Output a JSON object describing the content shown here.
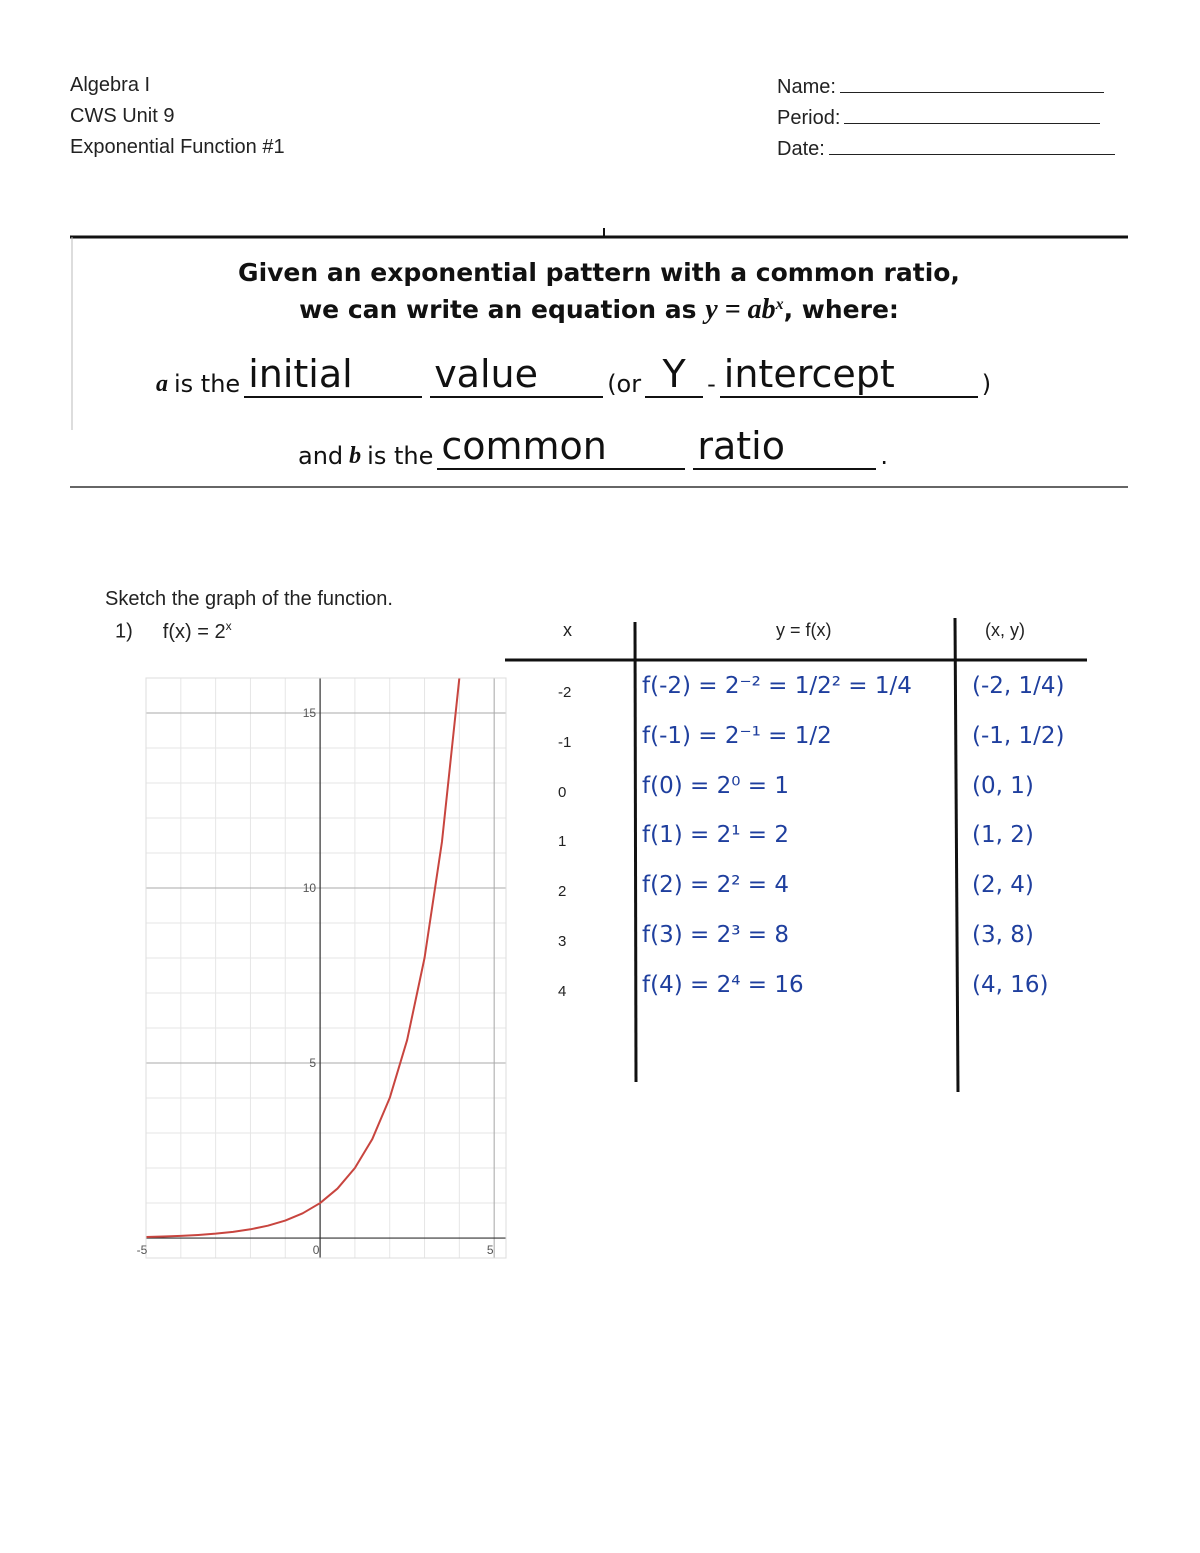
{
  "header": {
    "course": "Algebra I",
    "unit": "CWS Unit 9",
    "title": "Exponential Function #1",
    "name": "Name:",
    "period": "Period:",
    "date": "Date:"
  },
  "definition": {
    "line1": "Given an exponential pattern with a common ratio,",
    "line2_start": "we can write an equation as",
    "equation": "y = ab",
    "exponent": "x",
    "line2_end": ", where:"
  },
  "a_line": {
    "var": "a",
    "text": "is the",
    "answer1": "initial",
    "answer2": "value",
    "or": "(or",
    "answer3": "Y",
    "dash": "-",
    "answer4": "intercept",
    "close": ")"
  },
  "b_line": {
    "start": "and",
    "var": "b",
    "text": "is the",
    "answer1": "common",
    "answer2": "ratio",
    "end": "."
  },
  "problem": {
    "instruction": "Sketch the graph of the function.",
    "number": "1)",
    "function": "f(x) = 2",
    "exponent": "x"
  },
  "table": {
    "headers": [
      "x",
      "y = f(x)",
      "(x, y)"
    ],
    "rows": [
      [
        "-2",
        "f(-2) = 2⁻² = 1/2² = 1/4",
        "(-2, 1/4)"
      ],
      [
        "-1",
        "f(-1) = 2⁻¹ = 1/2",
        "(-1, 1/2)"
      ],
      [
        "0",
        "f(0) = 2⁰ = 1",
        "(0, 1)"
      ],
      [
        "1",
        "f(1) = 2¹ = 2",
        "(1, 2)"
      ],
      [
        "2",
        "f(2) = 2² = 4",
        "(2, 4)"
      ],
      [
        "3",
        "f(3) = 2³ = 8",
        "(3, 8)"
      ],
      [
        "4",
        "f(4) = 2⁴ = 16",
        "(4, 16)"
      ]
    ]
  },
  "chart_data": {
    "type": "line",
    "x": [
      -5,
      -4.5,
      -4,
      -3.5,
      -3,
      -2.5,
      -2,
      -1.5,
      -1,
      -0.5,
      0,
      0.5,
      1,
      1.5,
      2,
      2.5,
      3,
      3.5,
      4
    ],
    "series": [
      {
        "color": "#c8453f",
        "values": [
          0.03125,
          0.0442,
          0.0625,
          0.0884,
          0.125,
          0.1768,
          0.25,
          0.3536,
          0.5,
          0.7071,
          1,
          1.4142,
          2,
          2.8284,
          4,
          5.6569,
          8,
          11.3137,
          16
        ]
      }
    ],
    "xlim": [
      -5,
      5.34
    ],
    "ylim": [
      -0.57,
      16
    ],
    "xticks": [
      -5,
      0,
      5
    ],
    "yticks": [
      5,
      10,
      15
    ],
    "grid": true,
    "minor_grid": true
  }
}
